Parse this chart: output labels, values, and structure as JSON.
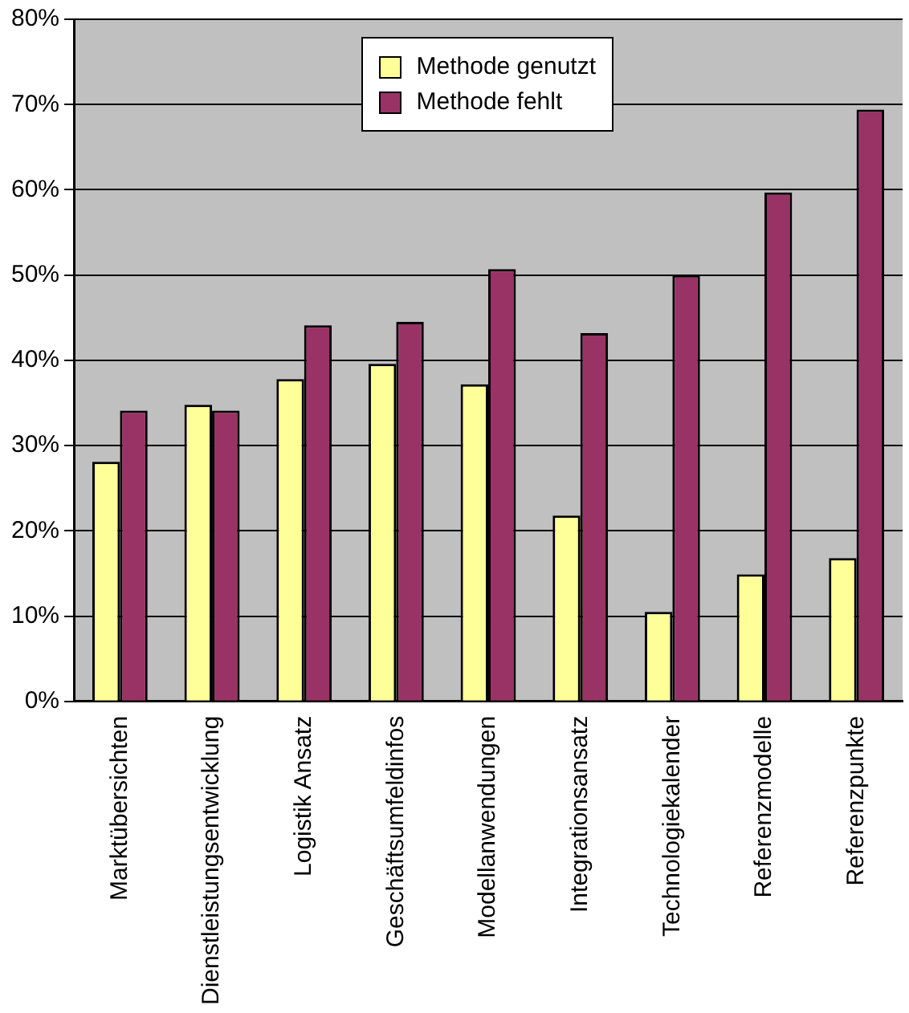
{
  "chart_data": {
    "type": "bar",
    "categories": [
      "Marktübersichten",
      "Dienstleistungsentwicklung",
      "Logistik Ansatz",
      "Geschäftsumfeldinfos",
      "Modellanwendungen",
      "Integrationsansatz",
      "Technologiekalender",
      "Referenzmodelle",
      "Referenzpunkte"
    ],
    "series": [
      {
        "name": "Methode genutzt",
        "color": "#ffff99",
        "values": [
          28.1,
          34.8,
          37.8,
          39.6,
          37.2,
          21.8,
          10.5,
          14.9,
          16.8
        ]
      },
      {
        "name": "Methode fehlt",
        "color": "#993366",
        "values": [
          34.1,
          34.1,
          44.1,
          44.5,
          50.7,
          43.2,
          50.0,
          59.7,
          69.4
        ]
      }
    ],
    "ylim": [
      0,
      80
    ],
    "yticks": [
      {
        "value": 0,
        "label": "0%"
      },
      {
        "value": 10,
        "label": "10%"
      },
      {
        "value": 20,
        "label": "20%"
      },
      {
        "value": 30,
        "label": "30%"
      },
      {
        "value": 40,
        "label": "40%"
      },
      {
        "value": 50,
        "label": "50%"
      },
      {
        "value": 60,
        "label": "60%"
      },
      {
        "value": 70,
        "label": "70%"
      },
      {
        "value": 80,
        "label": "80%"
      }
    ],
    "grid": "y",
    "legend": "top right"
  }
}
